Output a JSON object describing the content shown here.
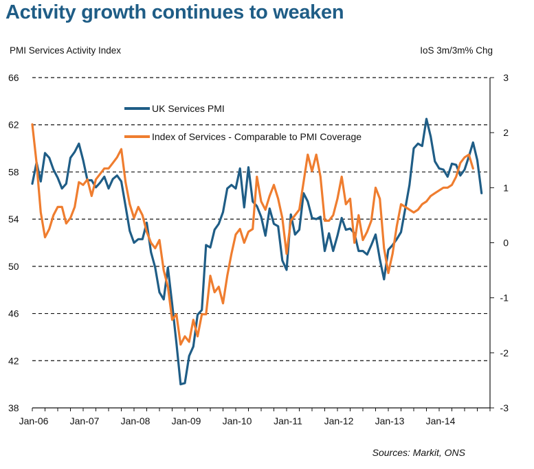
{
  "title": "Activity growth continues to weaken",
  "source": "Sources: Markit, ONS",
  "colors": {
    "pmi": "#1f5d86",
    "ios": "#ef7d2f",
    "grid": "#111111"
  },
  "chart_data": {
    "type": "line",
    "title": "Activity growth continues to weaken",
    "ylabel": "PMI Services Activity Index",
    "y2label": "IoS 3m/3m% Chg",
    "ylim": [
      38,
      66
    ],
    "y2lim": [
      -3,
      3
    ],
    "yticks": [
      38,
      42,
      46,
      50,
      54,
      58,
      62,
      66
    ],
    "y2ticks": [
      -3,
      -2,
      -1,
      0,
      1,
      2,
      3
    ],
    "xticks": [
      "Jan-06",
      "Jan-07",
      "Jan-08",
      "Jan-09",
      "Jan-10",
      "Jan-11",
      "Jan-12",
      "Jan-13",
      "Jan-14"
    ],
    "xrange_months": [
      "2006-01",
      "2014-12"
    ],
    "grid": true,
    "legend": "top-left",
    "series": [
      {
        "name": "UK Services PMI",
        "axis": "left",
        "start": "2006-01",
        "values": [
          57.0,
          58.8,
          57.2,
          59.6,
          59.2,
          58.2,
          57.5,
          56.6,
          57.0,
          59.2,
          59.7,
          60.4,
          59.0,
          57.3,
          57.3,
          56.7,
          57.1,
          57.6,
          56.6,
          57.4,
          57.7,
          57.2,
          55.1,
          53.0,
          52.0,
          52.3,
          52.3,
          53.7,
          51.2,
          49.9,
          47.8,
          47.2,
          49.9,
          46.8,
          43.5,
          40.0,
          40.1,
          42.4,
          43.2,
          45.9,
          46.3,
          51.8,
          51.6,
          53.1,
          53.6,
          54.6,
          56.6,
          56.9,
          56.6,
          58.3,
          55.0,
          58.4,
          55.5,
          55.1,
          54.2,
          52.6,
          54.9,
          53.6,
          53.4,
          50.5,
          49.7,
          54.4,
          52.7,
          53.1,
          56.2,
          55.5,
          54.1,
          54.0,
          54.2,
          51.3,
          52.8,
          51.3,
          52.6,
          54.1,
          53.1,
          53.2,
          52.8,
          51.3,
          51.3,
          51.0,
          51.8,
          52.7,
          50.6,
          48.9,
          51.4,
          51.8,
          52.3,
          52.9,
          54.9,
          56.9,
          60.0,
          60.4,
          60.2,
          62.5,
          61.0,
          58.9,
          58.3,
          58.2,
          57.6,
          58.7,
          58.6,
          57.7,
          58.2,
          59.3,
          60.5,
          59.0,
          56.2
        ]
      },
      {
        "name": "Index of Services - Comparable to PMI Coverage",
        "axis": "right",
        "start": "2006-01",
        "values": [
          2.15,
          1.45,
          0.55,
          0.1,
          0.25,
          0.5,
          0.65,
          0.65,
          0.35,
          0.45,
          0.65,
          1.1,
          1.05,
          1.15,
          0.85,
          1.15,
          1.25,
          1.35,
          1.35,
          1.45,
          1.55,
          1.7,
          1.1,
          0.7,
          0.45,
          0.65,
          0.5,
          0.2,
          0.0,
          -0.1,
          0.05,
          -0.5,
          -0.8,
          -1.4,
          -1.3,
          -1.85,
          -1.7,
          -1.8,
          -1.4,
          -1.7,
          -1.3,
          -1.3,
          -0.6,
          -0.9,
          -0.8,
          -1.1,
          -0.6,
          -0.2,
          0.15,
          0.25,
          0.0,
          0.2,
          0.25,
          1.2,
          0.75,
          0.6,
          0.85,
          1.05,
          0.8,
          0.45,
          -0.2,
          0.4,
          0.5,
          0.6,
          1.1,
          1.6,
          1.3,
          1.6,
          1.2,
          0.4,
          0.4,
          0.5,
          0.8,
          1.2,
          0.7,
          0.8,
          0.0,
          0.5,
          0.05,
          0.2,
          0.4,
          1.0,
          0.8,
          -0.1,
          -0.55,
          -0.2,
          0.3,
          0.7,
          0.65,
          0.6,
          0.55,
          0.6,
          0.7,
          0.75,
          0.85,
          0.9,
          0.95,
          1.0,
          1.0,
          1.05,
          1.2,
          1.45,
          1.55,
          1.6,
          1.35
        ]
      }
    ]
  }
}
